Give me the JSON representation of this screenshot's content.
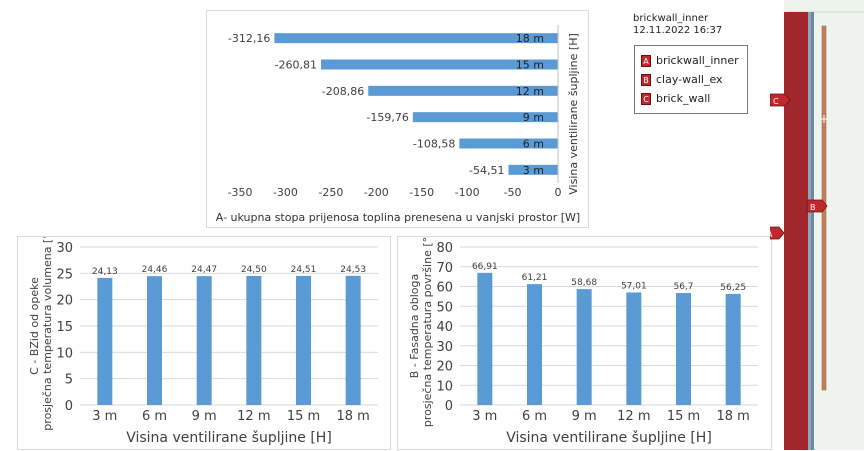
{
  "info": {
    "title": "brickwall_inner",
    "timestamp": "12.11.2022  16:37"
  },
  "legend": [
    {
      "code": "A",
      "label": "brickwall_inner"
    },
    {
      "code": "B",
      "label": "clay-wall_ex"
    },
    {
      "code": "C",
      "label": "brick_wall"
    }
  ],
  "markers": [
    {
      "code": "A"
    },
    {
      "code": "B"
    },
    {
      "code": "C"
    }
  ],
  "colors": {
    "bar": "#5b9bd5",
    "wall": "#a0282d",
    "marker": "#c0282d",
    "grid": "#d9d9d9"
  },
  "chart_data": [
    {
      "type": "bar",
      "orientation": "horizontal",
      "categories": [
        "3 m",
        "6 m",
        "9 m",
        "12 m",
        "15 m",
        "18 m"
      ],
      "values": [
        -54.51,
        -108.58,
        -159.76,
        -208.86,
        -260.81,
        -312.16
      ],
      "data_labels": [
        "-54,51",
        "-108,58",
        "-159,76",
        "-208,86",
        "-260,81",
        "-312,16"
      ],
      "xlabel": "A- ukupna stopa prijenosa toplina prenesena u vanjski prostor [W]",
      "ylabel": "Visina ventilirane šupljine [H]",
      "xlim": [
        -350,
        0
      ],
      "x_ticks": [
        "-350",
        "-300",
        "-250",
        "-200",
        "-150",
        "-100",
        "-50",
        "0"
      ],
      "grid": false
    },
    {
      "type": "bar",
      "categories": [
        "3 m",
        "6 m",
        "9 m",
        "12 m",
        "15 m",
        "18 m"
      ],
      "values": [
        24.13,
        24.46,
        24.47,
        24.5,
        24.51,
        24.53
      ],
      "data_labels": [
        "24,13",
        "24,46",
        "24,47",
        "24,50",
        "24,51",
        "24,53"
      ],
      "xlabel": "Visina ventilirane šupljine [H]",
      "ylabel_lines": [
        "C - BZid od opeke",
        "prosječna temperatura volumena [°C]"
      ],
      "ylim": [
        0,
        30
      ],
      "y_ticks": [
        "0",
        "5",
        "10",
        "15",
        "20",
        "25",
        "30"
      ],
      "grid": true
    },
    {
      "type": "bar",
      "categories": [
        "3 m",
        "6 m",
        "9 m",
        "12 m",
        "15 m",
        "18 m"
      ],
      "values": [
        66.91,
        61.21,
        58.68,
        57.01,
        56.7,
        56.25
      ],
      "data_labels": [
        "66,91",
        "61,21",
        "58,68",
        "57,01",
        "56,7",
        "56,25"
      ],
      "xlabel": "Visina ventilirane šupljine [H]",
      "ylabel_lines": [
        "B - Fasadna obloga",
        "prosječna temperatura površine [°C]"
      ],
      "ylim": [
        0,
        80
      ],
      "y_ticks": [
        "0",
        "10",
        "20",
        "30",
        "40",
        "50",
        "60",
        "70",
        "80"
      ],
      "grid": true
    }
  ]
}
